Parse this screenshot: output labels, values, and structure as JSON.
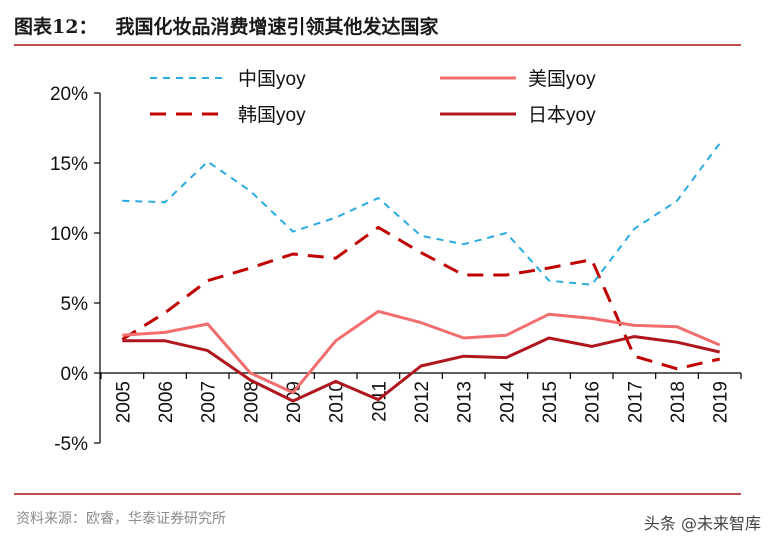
{
  "header": {
    "figure_label": "图表12：",
    "title": "我国化妆品消费增速引领其他发达国家"
  },
  "footer": {
    "source": "资料来源：欧睿，华泰证券研究所",
    "watermark": "头条 @未来智库"
  },
  "chart_data": {
    "type": "line",
    "x": [
      "2005",
      "2006",
      "2007",
      "2008",
      "2009",
      "2010",
      "2011",
      "2012",
      "2013",
      "2014",
      "2015",
      "2016",
      "2017",
      "2018",
      "2019"
    ],
    "ylim": [
      -5,
      20
    ],
    "yticks": [
      -5,
      0,
      5,
      10,
      15,
      20
    ],
    "ytick_labels": [
      "-5%",
      "0%",
      "5%",
      "10%",
      "15%",
      "20%"
    ],
    "series": [
      {
        "name": "中国yoy",
        "color": "#29abe2",
        "style": "dotted",
        "width": 2,
        "values": [
          12.3,
          12.2,
          15.1,
          13.0,
          10.1,
          11.1,
          12.5,
          9.8,
          9.2,
          10.0,
          6.6,
          6.3,
          10.3,
          12.3,
          16.4
        ]
      },
      {
        "name": "美国yoy",
        "color": "#f26d6d",
        "style": "solid",
        "width": 3,
        "values": [
          2.7,
          2.9,
          3.5,
          0.0,
          -1.4,
          2.3,
          4.4,
          3.6,
          2.5,
          2.7,
          4.2,
          3.9,
          3.4,
          3.3,
          2.0
        ]
      },
      {
        "name": "韩国yoy",
        "color": "#c00000",
        "style": "dashed",
        "width": 3,
        "values": [
          2.4,
          4.3,
          6.6,
          7.5,
          8.5,
          8.2,
          10.4,
          8.6,
          7.0,
          7.0,
          7.5,
          8.1,
          1.2,
          0.3,
          1.0
        ]
      },
      {
        "name": "日本yoy",
        "color": "#b0161d",
        "style": "solid",
        "width": 3,
        "values": [
          2.3,
          2.3,
          1.6,
          -0.5,
          -2.0,
          -0.6,
          -1.9,
          0.5,
          1.2,
          1.1,
          2.5,
          1.9,
          2.6,
          2.2,
          1.5
        ]
      }
    ],
    "legend_placement": "top",
    "grid": false
  }
}
